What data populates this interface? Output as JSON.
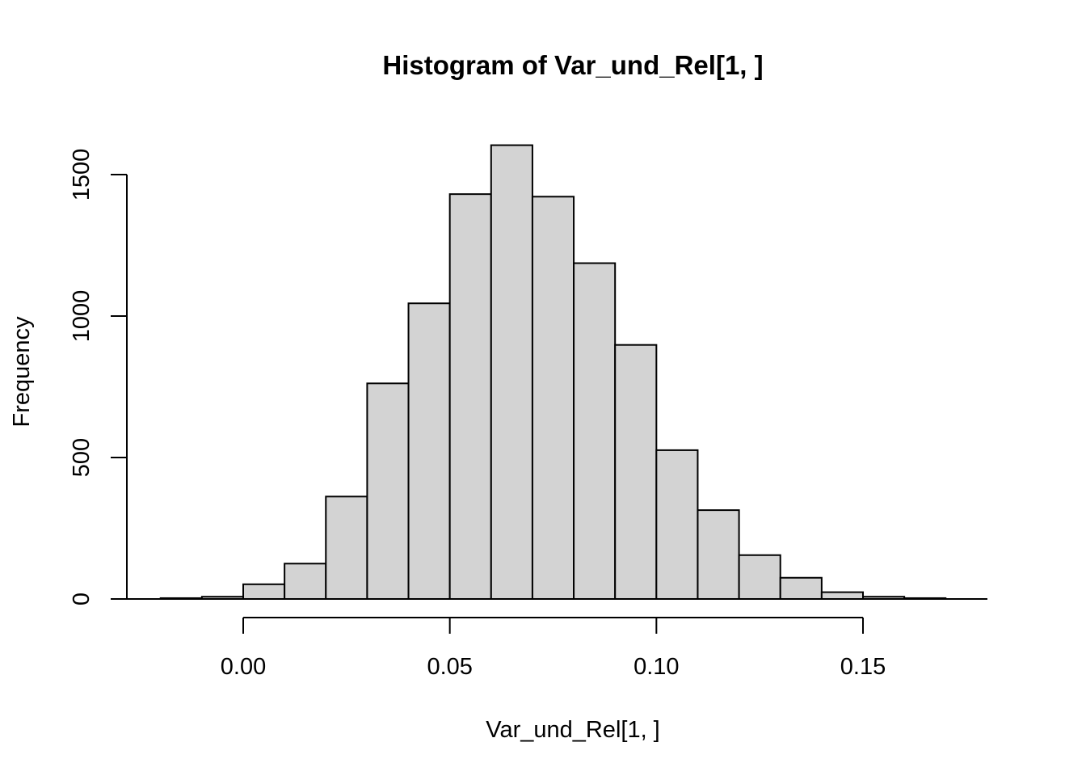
{
  "chart_data": {
    "type": "bar",
    "title": "Histogram of Var_und_Rel[1, ]",
    "xlabel": "Var_und_Rel[1, ]",
    "ylabel": "Frequency",
    "bin_width": 0.01,
    "bins": [
      {
        "x0": -0.02,
        "x1": -0.01,
        "count": 3
      },
      {
        "x0": -0.01,
        "x1": 0.0,
        "count": 8
      },
      {
        "x0": 0.0,
        "x1": 0.01,
        "count": 52
      },
      {
        "x0": 0.01,
        "x1": 0.02,
        "count": 125
      },
      {
        "x0": 0.02,
        "x1": 0.03,
        "count": 362
      },
      {
        "x0": 0.03,
        "x1": 0.04,
        "count": 762
      },
      {
        "x0": 0.04,
        "x1": 0.05,
        "count": 1045
      },
      {
        "x0": 0.05,
        "x1": 0.06,
        "count": 1431
      },
      {
        "x0": 0.06,
        "x1": 0.07,
        "count": 1604
      },
      {
        "x0": 0.07,
        "x1": 0.08,
        "count": 1422
      },
      {
        "x0": 0.08,
        "x1": 0.09,
        "count": 1187
      },
      {
        "x0": 0.09,
        "x1": 0.1,
        "count": 898
      },
      {
        "x0": 0.1,
        "x1": 0.11,
        "count": 526
      },
      {
        "x0": 0.11,
        "x1": 0.12,
        "count": 314
      },
      {
        "x0": 0.12,
        "x1": 0.13,
        "count": 155
      },
      {
        "x0": 0.13,
        "x1": 0.14,
        "count": 75
      },
      {
        "x0": 0.14,
        "x1": 0.15,
        "count": 24
      },
      {
        "x0": 0.15,
        "x1": 0.16,
        "count": 8
      },
      {
        "x0": 0.16,
        "x1": 0.17,
        "count": 3
      }
    ],
    "xlim": [
      -0.02,
      0.18
    ],
    "ylim": [
      0,
      1600
    ],
    "x_ticks": [
      {
        "value": 0.0,
        "label": "0.00"
      },
      {
        "value": 0.05,
        "label": "0.05"
      },
      {
        "value": 0.1,
        "label": "0.10"
      },
      {
        "value": 0.15,
        "label": "0.15"
      }
    ],
    "y_ticks": [
      {
        "value": 0,
        "label": "0"
      },
      {
        "value": 500,
        "label": "500"
      },
      {
        "value": 1000,
        "label": "1000"
      },
      {
        "value": 1500,
        "label": "1500"
      }
    ],
    "grid": false,
    "legend": "none",
    "colors": {
      "bar_fill": "#d3d3d3",
      "bar_stroke": "#000000",
      "background": "#ffffff"
    }
  }
}
